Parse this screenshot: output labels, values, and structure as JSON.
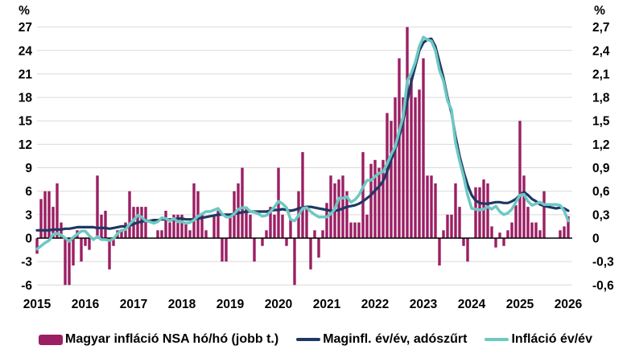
{
  "page": {
    "background": "#ffffff"
  },
  "chart_data": {
    "type": "bar+line",
    "title": "",
    "legend_position": "bottom",
    "grid": "horizontal",
    "colors": {
      "bar": "#9B1F63",
      "core_line": "#1F3864",
      "headline_line": "#6DC8C3",
      "gridline": "#D9D9D9",
      "zero_line": "#000000"
    },
    "left_axis": {
      "unit": "%",
      "min": -6,
      "max": 27,
      "tick_labels": [
        "27",
        "24",
        "21",
        "18",
        "15",
        "12",
        "9",
        "6",
        "3",
        "0",
        "-3",
        "-6"
      ]
    },
    "right_axis": {
      "unit": "%",
      "min": -0.6,
      "max": 2.7,
      "tick_labels": [
        "2,7",
        "2,4",
        "2,1",
        "1,8",
        "1,5",
        "1,2",
        "0,9",
        "0,6",
        "0,3",
        "0",
        "-0,3",
        "-0,6"
      ]
    },
    "x_axis": {
      "start": "2015-01",
      "months_count": 133,
      "year_labels": [
        "2015",
        "2016",
        "2017",
        "2018",
        "2019",
        "2020",
        "2021",
        "2022",
        "2023",
        "2024",
        "2025",
        "2026"
      ]
    },
    "series": [
      {
        "name": "Magyar infláció NSA hó/hó (jobb t.)",
        "type": "bar",
        "axis": "right",
        "values": [
          -0.2,
          0.5,
          0.6,
          0.6,
          0.4,
          0.7,
          0.2,
          -0.6,
          -0.6,
          -0.35,
          0.1,
          -0.3,
          -0.1,
          -0.15,
          0.0,
          0.8,
          0.3,
          0.35,
          -0.4,
          -0.1,
          0.1,
          0.1,
          0.2,
          0.6,
          0.4,
          0.4,
          0.4,
          0.4,
          0.0,
          0.0,
          0.1,
          0.1,
          0.35,
          0.2,
          0.3,
          0.3,
          0.3,
          0.2,
          0.1,
          0.7,
          0.6,
          0.3,
          0.1,
          0.0,
          0.3,
          0.35,
          -0.3,
          -0.3,
          0.3,
          0.6,
          0.7,
          0.9,
          0.4,
          0.3,
          -0.3,
          0.0,
          -0.1,
          0.1,
          0.4,
          0.3,
          0.9,
          0.3,
          -0.1,
          0.25,
          -0.6,
          0.6,
          1.1,
          0.4,
          -0.4,
          0.1,
          -0.25,
          0.1,
          0.45,
          0.8,
          0.7,
          0.75,
          0.8,
          0.6,
          0.2,
          0.2,
          0.2,
          1.1,
          0.3,
          0.95,
          1.0,
          0.9,
          1.0,
          1.6,
          1.5,
          1.8,
          2.3,
          1.8,
          2.7,
          2.05,
          1.8,
          1.9,
          2.3,
          0.8,
          0.8,
          0.7,
          -0.35,
          0.1,
          0.3,
          0.3,
          0.7,
          0.4,
          -0.1,
          -0.3,
          0.0,
          0.65,
          0.65,
          0.75,
          0.7,
          0.15,
          -0.12,
          0.07,
          -0.1,
          0.1,
          0.2,
          0.42,
          1.5,
          0.8,
          0.4,
          0.2,
          0.2,
          0.1,
          0.6,
          0.0,
          0.0,
          0.0,
          0.1,
          0.15,
          0.28
        ]
      },
      {
        "name": "Maginfl. év/év, adószűrt",
        "type": "line",
        "axis": "left",
        "values": [
          1.0,
          1.0,
          1.0,
          1.0,
          1.1,
          1.1,
          1.1,
          1.2,
          1.2,
          1.3,
          1.4,
          1.4,
          1.4,
          1.4,
          1.4,
          1.3,
          1.3,
          1.3,
          1.2,
          1.3,
          1.4,
          1.5,
          1.5,
          1.6,
          1.8,
          2.0,
          2.1,
          2.2,
          2.2,
          2.3,
          2.3,
          2.4,
          2.4,
          2.4,
          2.4,
          2.5,
          2.5,
          2.4,
          2.4,
          2.4,
          2.5,
          2.6,
          2.7,
          2.8,
          2.9,
          3.0,
          3.0,
          3.0,
          3.0,
          3.1,
          3.2,
          3.3,
          3.4,
          3.4,
          3.4,
          3.4,
          3.4,
          3.4,
          3.5,
          3.6,
          3.6,
          3.7,
          3.6,
          3.5,
          3.6,
          3.8,
          3.9,
          4.0,
          4.0,
          3.9,
          3.8,
          3.7,
          3.6,
          3.5,
          3.5,
          3.6,
          3.8,
          4.0,
          4.1,
          4.2,
          4.4,
          4.7,
          5.1,
          5.5,
          6.1,
          6.6,
          7.3,
          8.5,
          10.0,
          11.4,
          13.0,
          15.0,
          17.5,
          20.0,
          22.0,
          24.0,
          25.0,
          25.4,
          25.5,
          24.5,
          22.5,
          20.5,
          18.0,
          16.0,
          13.0,
          10.5,
          8.5,
          6.8,
          5.5,
          4.8,
          4.5,
          4.4,
          4.4,
          4.5,
          4.6,
          4.6,
          4.5,
          4.5,
          4.7,
          5.0,
          5.5,
          5.9,
          5.5,
          5.0,
          4.7,
          4.3,
          4.1,
          4.0,
          3.9,
          3.8,
          3.9,
          3.8,
          3.5
        ]
      },
      {
        "name": "Infláció év/év",
        "type": "line",
        "axis": "left",
        "values": [
          -1.4,
          -1.0,
          -0.6,
          -0.3,
          0.5,
          0.6,
          0.4,
          0.0,
          -0.4,
          0.1,
          0.5,
          0.9,
          0.9,
          0.3,
          -0.2,
          0.2,
          -0.2,
          -0.2,
          -0.3,
          -0.1,
          0.6,
          1.0,
          1.1,
          1.8,
          2.3,
          2.9,
          2.7,
          2.2,
          2.1,
          1.9,
          2.1,
          2.6,
          2.5,
          2.2,
          2.5,
          2.1,
          2.1,
          1.9,
          2.0,
          2.3,
          2.8,
          3.1,
          3.4,
          3.4,
          3.6,
          3.8,
          3.1,
          2.7,
          2.7,
          3.1,
          3.7,
          3.9,
          3.9,
          3.4,
          3.3,
          3.1,
          2.8,
          2.9,
          3.4,
          4.0,
          4.7,
          4.4,
          3.9,
          2.4,
          2.2,
          2.9,
          3.8,
          3.9,
          3.4,
          3.0,
          2.7,
          2.7,
          2.7,
          3.1,
          3.7,
          5.1,
          5.1,
          5.3,
          4.6,
          4.9,
          5.5,
          6.5,
          7.4,
          7.4,
          7.9,
          8.3,
          8.5,
          9.5,
          10.7,
          11.7,
          13.7,
          15.6,
          20.1,
          21.1,
          22.5,
          24.5,
          25.7,
          25.4,
          25.2,
          24.0,
          21.5,
          20.1,
          17.6,
          16.4,
          12.2,
          9.9,
          7.9,
          5.5,
          3.8,
          3.7,
          3.6,
          3.7,
          4.0,
          3.7,
          4.1,
          3.4,
          3.0,
          3.2,
          3.7,
          4.6,
          5.5,
          5.6,
          4.7,
          4.2,
          4.4,
          4.6,
          4.3,
          4.3,
          4.3,
          4.3,
          4.2,
          3.5,
          2.2
        ]
      }
    ]
  }
}
